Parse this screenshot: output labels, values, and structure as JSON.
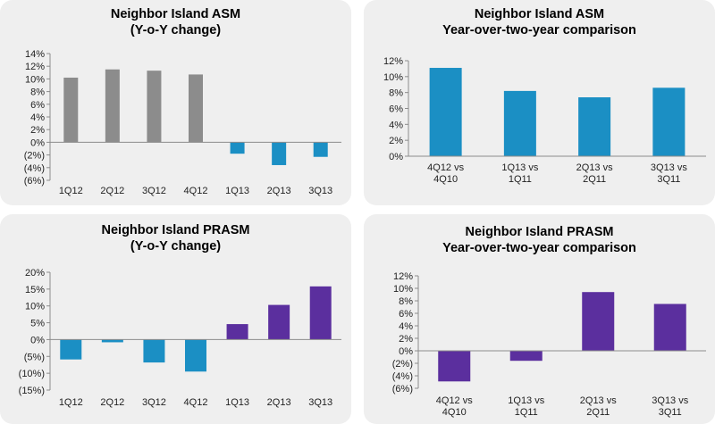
{
  "chart_data": [
    {
      "type": "bar",
      "title": "Neighbor Island ASM",
      "subtitle": "(Y-o-Y change)",
      "categories": [
        "1Q12",
        "2Q12",
        "3Q12",
        "4Q12",
        "1Q13",
        "2Q13",
        "3Q13"
      ],
      "values": [
        10.2,
        11.5,
        11.3,
        10.7,
        -1.8,
        -3.6,
        -2.3
      ],
      "bar_colors": [
        "#8c8c8c",
        "#8c8c8c",
        "#8c8c8c",
        "#8c8c8c",
        "#1b8fc4",
        "#1b8fc4",
        "#1b8fc4"
      ],
      "ylim": [
        -6,
        14
      ],
      "yticks": [
        14,
        12,
        10,
        8,
        6,
        4,
        2,
        0,
        -2,
        -4,
        -6
      ],
      "ytick_labels": [
        "14%",
        "12%",
        "10%",
        "8%",
        "6%",
        "4%",
        "2%",
        "0%",
        "(2%)",
        "(4%)",
        "(6%)"
      ],
      "xlabel": "",
      "ylabel": ""
    },
    {
      "type": "bar",
      "title": "Neighbor Island ASM",
      "subtitle": "Year-over-two-year comparison",
      "categories": [
        [
          "4Q12 vs",
          "4Q10"
        ],
        [
          "1Q13 vs",
          "1Q11"
        ],
        [
          "2Q13 vs",
          "2Q11"
        ],
        [
          "3Q13 vs",
          "3Q11"
        ]
      ],
      "values": [
        11.1,
        8.2,
        7.4,
        8.6
      ],
      "bar_colors": [
        "#1b8fc4",
        "#1b8fc4",
        "#1b8fc4",
        "#1b8fc4"
      ],
      "ylim": [
        0,
        12
      ],
      "yticks": [
        12,
        10,
        8,
        6,
        4,
        2,
        0
      ],
      "ytick_labels": [
        "12%",
        "10%",
        "8%",
        "6%",
        "4%",
        "2%",
        "0%"
      ],
      "xlabel": "",
      "ylabel": ""
    },
    {
      "type": "bar",
      "title": "Neighbor Island PRASM",
      "subtitle": "(Y-o-Y change)",
      "categories": [
        "1Q12",
        "2Q12",
        "3Q12",
        "4Q12",
        "1Q13",
        "2Q13",
        "3Q13"
      ],
      "values": [
        -5.9,
        -0.8,
        -6.8,
        -9.5,
        4.6,
        10.3,
        15.8
      ],
      "bar_colors": [
        "#1b8fc4",
        "#1b8fc4",
        "#1b8fc4",
        "#1b8fc4",
        "#5b2f9e",
        "#5b2f9e",
        "#5b2f9e"
      ],
      "ylim": [
        -15,
        20
      ],
      "yticks": [
        20,
        15,
        10,
        5,
        0,
        -5,
        -10,
        -15
      ],
      "ytick_labels": [
        "20%",
        "15%",
        "10%",
        "5%",
        "0%",
        "(5%)",
        "(10%)",
        "(15%)"
      ],
      "xlabel": "",
      "ylabel": ""
    },
    {
      "type": "bar",
      "title": "Neighbor Island PRASM",
      "subtitle": "Year-over-two-year comparison",
      "categories": [
        [
          "4Q12 vs",
          "4Q10"
        ],
        [
          "1Q13 vs",
          "1Q11"
        ],
        [
          "2Q13 vs",
          "2Q11"
        ],
        [
          "3Q13 vs",
          "3Q11"
        ]
      ],
      "values": [
        -4.9,
        -1.6,
        9.4,
        7.5
      ],
      "bar_colors": [
        "#5b2f9e",
        "#5b2f9e",
        "#5b2f9e",
        "#5b2f9e"
      ],
      "ylim": [
        -6,
        12
      ],
      "yticks": [
        12,
        10,
        8,
        6,
        4,
        2,
        0,
        -2,
        -4,
        -6
      ],
      "ytick_labels": [
        "12%",
        "10%",
        "8%",
        "6%",
        "4%",
        "2%",
        "0%",
        "(2%)",
        "(4%)",
        "(6%)"
      ],
      "xlabel": "",
      "ylabel": ""
    }
  ]
}
